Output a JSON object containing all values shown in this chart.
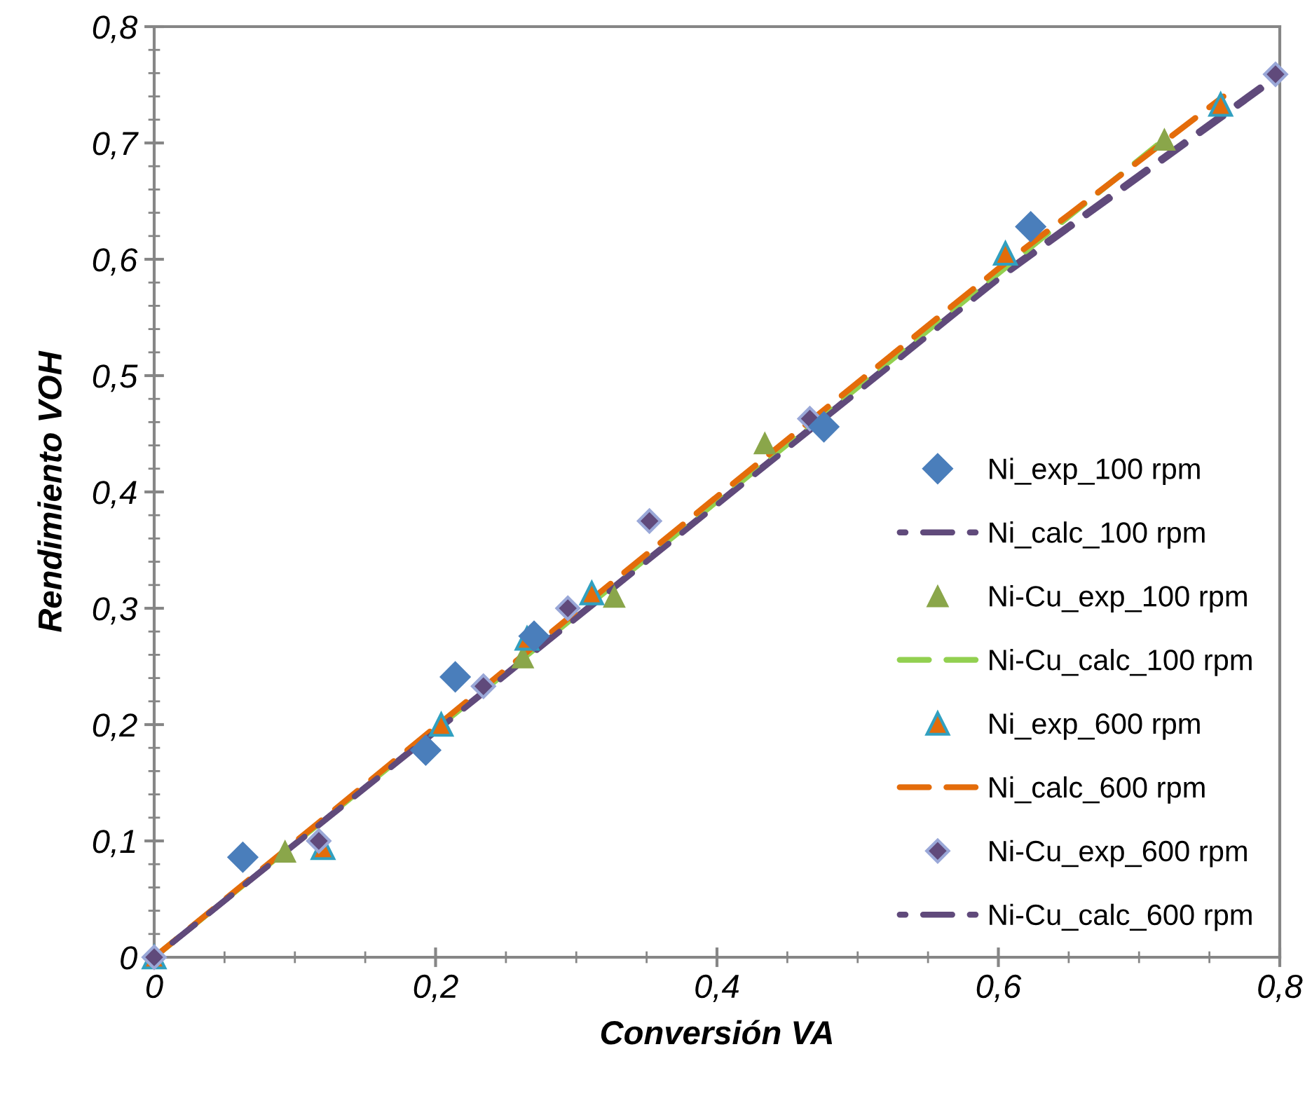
{
  "chart_data": {
    "type": "scatter",
    "xlabel": "Conversión VA",
    "ylabel": "Rendimiento VOH",
    "xlim": [
      0,
      0.8
    ],
    "ylim": [
      0,
      0.8
    ],
    "xticks": [
      {
        "value": 0,
        "label": "0"
      },
      {
        "value": 0.2,
        "label": "0,2"
      },
      {
        "value": 0.4,
        "label": "0,4"
      },
      {
        "value": 0.6,
        "label": "0,6"
      },
      {
        "value": 0.8,
        "label": "0,8"
      }
    ],
    "yticks": [
      {
        "value": 0,
        "label": "0"
      },
      {
        "value": 0.1,
        "label": "0,1"
      },
      {
        "value": 0.2,
        "label": "0,2"
      },
      {
        "value": 0.3,
        "label": "0,3"
      },
      {
        "value": 0.4,
        "label": "0,4"
      },
      {
        "value": 0.5,
        "label": "0,5"
      },
      {
        "value": 0.6,
        "label": "0,6"
      },
      {
        "value": 0.7,
        "label": "0,7"
      },
      {
        "value": 0.8,
        "label": "0,8"
      }
    ],
    "grid": false,
    "legend": "right",
    "series": [
      {
        "name": "Ni_exp_100 rpm",
        "marker": "diamond",
        "color": "#4a7ebb",
        "x": [
          0.063,
          0.193,
          0.214,
          0.27,
          0.476,
          0.623
        ],
        "values": [
          0.086,
          0.178,
          0.241,
          0.276,
          0.456,
          0.628
        ]
      },
      {
        "name": "Ni_calc_100 rpm",
        "type": "line",
        "line_style": "dashed",
        "color": "#604a7b",
        "x": [
          0,
          0.2,
          0.4,
          0.6,
          0.8
        ],
        "values": [
          0,
          0.195,
          0.39,
          0.585,
          0.76
        ]
      },
      {
        "name": "Ni-Cu_exp_100 rpm",
        "marker": "triangle",
        "color": "#8aa64a",
        "x": [
          0.093,
          0.262,
          0.327,
          0.434,
          0.718
        ],
        "values": [
          0.091,
          0.258,
          0.31,
          0.442,
          0.703
        ]
      },
      {
        "name": "Ni-Cu_calc_100 rpm",
        "type": "line",
        "line_style": "dashed",
        "color": "#92d050",
        "x": [
          0,
          0.2,
          0.4,
          0.6,
          0.72
        ],
        "values": [
          0,
          0.196,
          0.392,
          0.588,
          0.705
        ]
      },
      {
        "name": "Ni_exp_600 rpm",
        "marker": "triangle",
        "color": "#e46c0a",
        "x": [
          0,
          0.12,
          0.204,
          0.265,
          0.311,
          0.605,
          0.758
        ],
        "values": [
          0,
          0.094,
          0.2,
          0.274,
          0.313,
          0.605,
          0.733
        ]
      },
      {
        "name": "Ni_calc_600 rpm",
        "type": "line",
        "line_style": "dashed",
        "color": "#e46c0a",
        "x": [
          0,
          0.2,
          0.4,
          0.6,
          0.76
        ],
        "values": [
          0,
          0.198,
          0.396,
          0.592,
          0.74
        ]
      },
      {
        "name": "Ni-Cu_exp_600 rpm",
        "marker": "diamond",
        "color": "#604a7b",
        "x": [
          0,
          0.117,
          0.234,
          0.294,
          0.352,
          0.466,
          0.797
        ],
        "values": [
          0,
          0.1,
          0.233,
          0.3,
          0.375,
          0.463,
          0.759
        ]
      },
      {
        "name": "Ni-Cu_calc_600 rpm",
        "type": "line",
        "line_style": "dashed",
        "color": "#604a7b",
        "x": [
          0,
          0.2,
          0.4,
          0.6,
          0.8
        ],
        "values": [
          0,
          0.194,
          0.389,
          0.583,
          0.758
        ]
      }
    ]
  }
}
